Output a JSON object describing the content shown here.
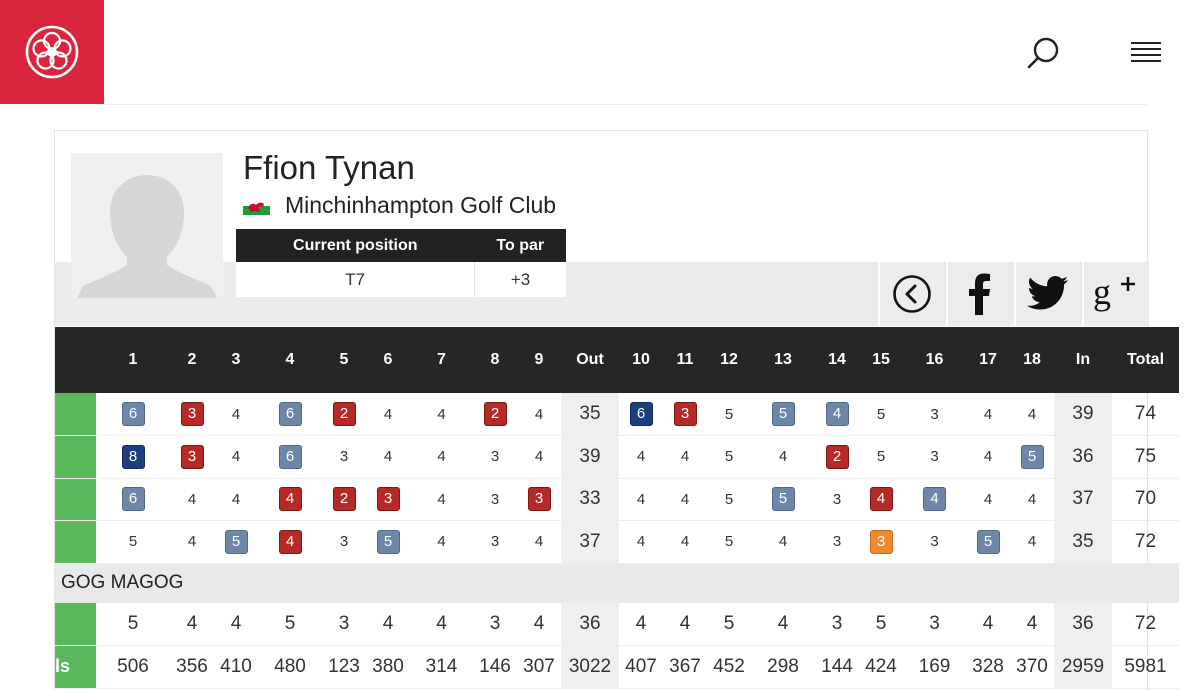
{
  "colors": {
    "brand_red": "#d9263c",
    "header_dark": "#262626",
    "birdie": "#6e87a8",
    "eagle": "#1b3e7e",
    "bogey": "#b52a26",
    "highlight": "#f08a2a",
    "round_tag": "#5cb85c"
  },
  "icons": {
    "logo": "rose-logo-icon",
    "search": "search-icon",
    "menu": "hamburger-menu-icon"
  },
  "player": {
    "name": "Ffion Tynan",
    "flag": "wales-flag",
    "club": "Minchinhampton Golf Club",
    "position_label": "Current position",
    "to_par_label": "To par",
    "position": "T7",
    "to_par": "+3"
  },
  "share": [
    {
      "name": "back-chevron-icon"
    },
    {
      "name": "facebook-icon"
    },
    {
      "name": "twitter-icon"
    },
    {
      "name": "google-plus-icon"
    }
  ],
  "scorecard": {
    "headers": [
      "",
      "1",
      "2",
      "3",
      "4",
      "5",
      "6",
      "7",
      "8",
      "9",
      "Out",
      "10",
      "11",
      "12",
      "13",
      "14",
      "15",
      "16",
      "17",
      "18",
      "In",
      "Total"
    ],
    "rounds": [
      {
        "holes": [
          {
            "v": "6",
            "c": "birdie"
          },
          {
            "v": "3",
            "c": "bogey"
          },
          {
            "v": "4",
            "c": ""
          },
          {
            "v": "6",
            "c": "birdie"
          },
          {
            "v": "2",
            "c": "bogey"
          },
          {
            "v": "4",
            "c": ""
          },
          {
            "v": "4",
            "c": ""
          },
          {
            "v": "2",
            "c": "bogey"
          },
          {
            "v": "4",
            "c": ""
          },
          {
            "v": "6",
            "c": "eagle"
          },
          {
            "v": "3",
            "c": "bogey"
          },
          {
            "v": "5",
            "c": ""
          },
          {
            "v": "5",
            "c": "birdie"
          },
          {
            "v": "4",
            "c": "birdie"
          },
          {
            "v": "5",
            "c": ""
          },
          {
            "v": "3",
            "c": ""
          },
          {
            "v": "4",
            "c": ""
          },
          {
            "v": "4",
            "c": ""
          }
        ],
        "out": "35",
        "in": "39",
        "total": "74"
      },
      {
        "holes": [
          {
            "v": "8",
            "c": "eagle"
          },
          {
            "v": "3",
            "c": "bogey"
          },
          {
            "v": "4",
            "c": ""
          },
          {
            "v": "6",
            "c": "birdie"
          },
          {
            "v": "3",
            "c": ""
          },
          {
            "v": "4",
            "c": ""
          },
          {
            "v": "4",
            "c": ""
          },
          {
            "v": "3",
            "c": ""
          },
          {
            "v": "4",
            "c": ""
          },
          {
            "v": "4",
            "c": ""
          },
          {
            "v": "4",
            "c": ""
          },
          {
            "v": "5",
            "c": ""
          },
          {
            "v": "4",
            "c": ""
          },
          {
            "v": "2",
            "c": "bogey"
          },
          {
            "v": "5",
            "c": ""
          },
          {
            "v": "3",
            "c": ""
          },
          {
            "v": "4",
            "c": ""
          },
          {
            "v": "5",
            "c": "birdie"
          }
        ],
        "out": "39",
        "in": "36",
        "total": "75"
      },
      {
        "holes": [
          {
            "v": "6",
            "c": "birdie"
          },
          {
            "v": "4",
            "c": ""
          },
          {
            "v": "4",
            "c": ""
          },
          {
            "v": "4",
            "c": "bogey"
          },
          {
            "v": "2",
            "c": "bogey"
          },
          {
            "v": "3",
            "c": "bogey"
          },
          {
            "v": "4",
            "c": ""
          },
          {
            "v": "3",
            "c": ""
          },
          {
            "v": "3",
            "c": "bogey"
          },
          {
            "v": "4",
            "c": ""
          },
          {
            "v": "4",
            "c": ""
          },
          {
            "v": "5",
            "c": ""
          },
          {
            "v": "5",
            "c": "birdie"
          },
          {
            "v": "3",
            "c": ""
          },
          {
            "v": "4",
            "c": "bogey"
          },
          {
            "v": "4",
            "c": "birdie"
          },
          {
            "v": "4",
            "c": ""
          },
          {
            "v": "4",
            "c": ""
          }
        ],
        "out": "33",
        "in": "37",
        "total": "70"
      },
      {
        "holes": [
          {
            "v": "5",
            "c": ""
          },
          {
            "v": "4",
            "c": ""
          },
          {
            "v": "5",
            "c": "birdie"
          },
          {
            "v": "4",
            "c": "bogey"
          },
          {
            "v": "3",
            "c": ""
          },
          {
            "v": "5",
            "c": "birdie"
          },
          {
            "v": "4",
            "c": ""
          },
          {
            "v": "3",
            "c": ""
          },
          {
            "v": "4",
            "c": ""
          },
          {
            "v": "4",
            "c": ""
          },
          {
            "v": "4",
            "c": ""
          },
          {
            "v": "5",
            "c": ""
          },
          {
            "v": "4",
            "c": ""
          },
          {
            "v": "3",
            "c": ""
          },
          {
            "v": "3",
            "c": "par3"
          },
          {
            "v": "3",
            "c": ""
          },
          {
            "v": "5",
            "c": "birdie"
          },
          {
            "v": "4",
            "c": ""
          }
        ],
        "out": "37",
        "in": "35",
        "total": "72"
      }
    ],
    "course_name": "GOG MAGOG",
    "par": {
      "holes": [
        "5",
        "4",
        "4",
        "5",
        "3",
        "4",
        "4",
        "3",
        "4",
        "4",
        "4",
        "5",
        "4",
        "3",
        "5",
        "3",
        "4",
        "4"
      ],
      "out": "36",
      "in": "36",
      "total": "72"
    },
    "yards": {
      "label": "ls",
      "holes": [
        "506",
        "356",
        "410",
        "480",
        "123",
        "380",
        "314",
        "146",
        "307",
        "407",
        "367",
        "452",
        "298",
        "144",
        "424",
        "169",
        "328",
        "370"
      ],
      "out": "3022",
      "in": "2959",
      "total": "5981"
    }
  }
}
